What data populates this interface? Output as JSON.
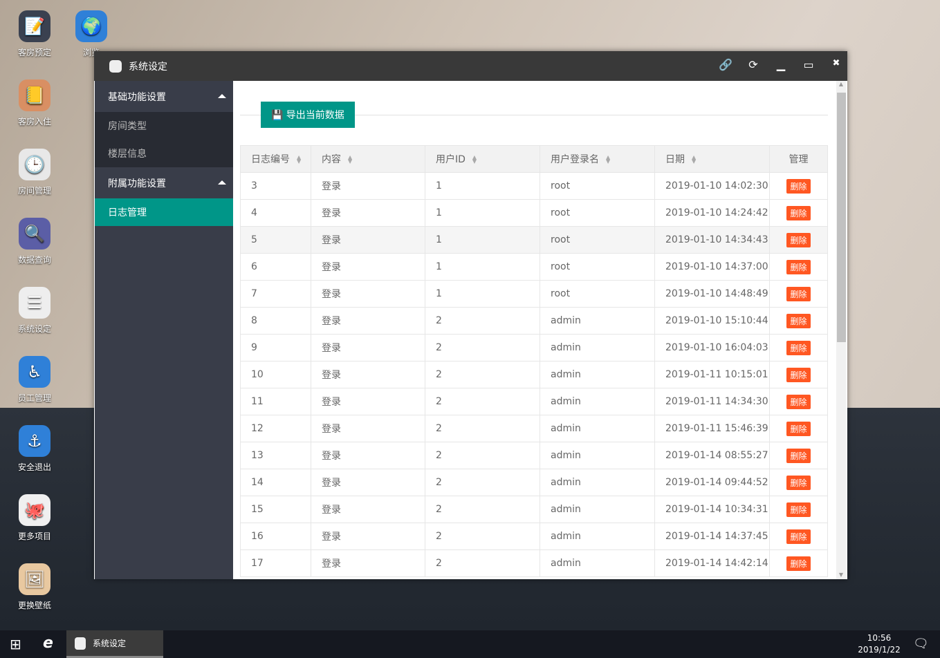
{
  "desktop": {
    "icons": [
      {
        "label": "客房预定",
        "icon": "notepad-icon",
        "color": "#3a4150",
        "glyph": "📝"
      },
      {
        "label": "浏览",
        "icon": "globe-icon",
        "color": "#2f80d8",
        "glyph": "🌍"
      },
      {
        "label": "客房入住",
        "icon": "sticky-note-icon",
        "color": "#d98f63",
        "glyph": "📒"
      },
      {
        "label": "房间管理",
        "icon": "clock-icon",
        "color": "#e8e8e8",
        "glyph": "🕒"
      },
      {
        "label": "数据查询",
        "icon": "search-document-icon",
        "color": "#5b5ea6",
        "glyph": "🔍"
      },
      {
        "label": "系统设定",
        "icon": "settings-toggle-icon",
        "color": "#eeeeee",
        "glyph": "☰"
      },
      {
        "label": "员工管理",
        "icon": "accessibility-icon",
        "color": "#2f80d8",
        "glyph": "♿"
      },
      {
        "label": "安全退出",
        "icon": "anchor-icon",
        "color": "#2f80d8",
        "glyph": "⚓"
      },
      {
        "label": "更多项目",
        "icon": "github-icon",
        "color": "#f0f0f0",
        "glyph": "🐙"
      },
      {
        "label": "更换壁纸",
        "icon": "picture-icon",
        "color": "#e8c8a0",
        "glyph": "🖼"
      }
    ]
  },
  "window": {
    "title": "系统设定"
  },
  "sidebar": {
    "group1": "基础功能设置",
    "items1": [
      "房间类型",
      "楼层信息"
    ],
    "group2": "附属功能设置",
    "items2": [
      "日志管理"
    ]
  },
  "toolbar": {
    "export_label": "导出当前数据"
  },
  "table": {
    "headers": [
      "日志编号",
      "内容",
      "用户ID",
      "用户登录名",
      "日期",
      "管理"
    ],
    "delete_label": "删除",
    "rows": [
      [
        "3",
        "登录",
        "1",
        "root",
        "2019-01-10 14:02:30"
      ],
      [
        "4",
        "登录",
        "1",
        "root",
        "2019-01-10 14:24:42"
      ],
      [
        "5",
        "登录",
        "1",
        "root",
        "2019-01-10 14:34:43"
      ],
      [
        "6",
        "登录",
        "1",
        "root",
        "2019-01-10 14:37:00"
      ],
      [
        "7",
        "登录",
        "1",
        "root",
        "2019-01-10 14:48:49"
      ],
      [
        "8",
        "登录",
        "2",
        "admin",
        "2019-01-10 15:10:44"
      ],
      [
        "9",
        "登录",
        "2",
        "admin",
        "2019-01-10 16:04:03"
      ],
      [
        "10",
        "登录",
        "2",
        "admin",
        "2019-01-11 10:15:01"
      ],
      [
        "11",
        "登录",
        "2",
        "admin",
        "2019-01-11 14:34:30"
      ],
      [
        "12",
        "登录",
        "2",
        "admin",
        "2019-01-11 15:46:39"
      ],
      [
        "13",
        "登录",
        "2",
        "admin",
        "2019-01-14 08:55:27"
      ],
      [
        "14",
        "登录",
        "2",
        "admin",
        "2019-01-14 09:44:52"
      ],
      [
        "15",
        "登录",
        "2",
        "admin",
        "2019-01-14 10:34:31"
      ],
      [
        "16",
        "登录",
        "2",
        "admin",
        "2019-01-14 14:37:45"
      ],
      [
        "17",
        "登录",
        "2",
        "admin",
        "2019-01-14 14:42:14"
      ]
    ]
  },
  "taskbar": {
    "task_label": "系统设定",
    "time": "10:56",
    "date": "2019/1/22"
  }
}
